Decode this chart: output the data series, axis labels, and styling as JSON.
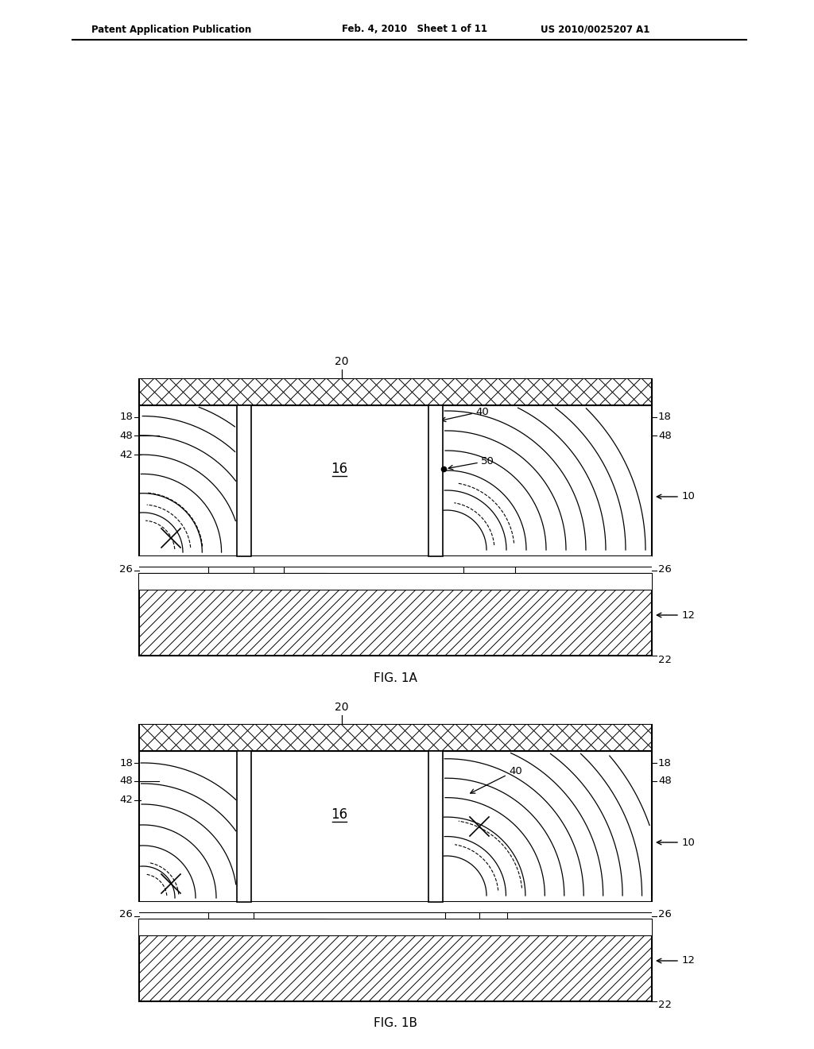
{
  "bg_color": "#ffffff",
  "line_color": "#000000",
  "header_text_left": "Patent Application Publication",
  "header_text_mid": "Feb. 4, 2010   Sheet 1 of 11",
  "header_text_right": "US 2010/0025207 A1",
  "fig1a_label": "FIG. 1A",
  "fig1b_label": "FIG. 1B"
}
